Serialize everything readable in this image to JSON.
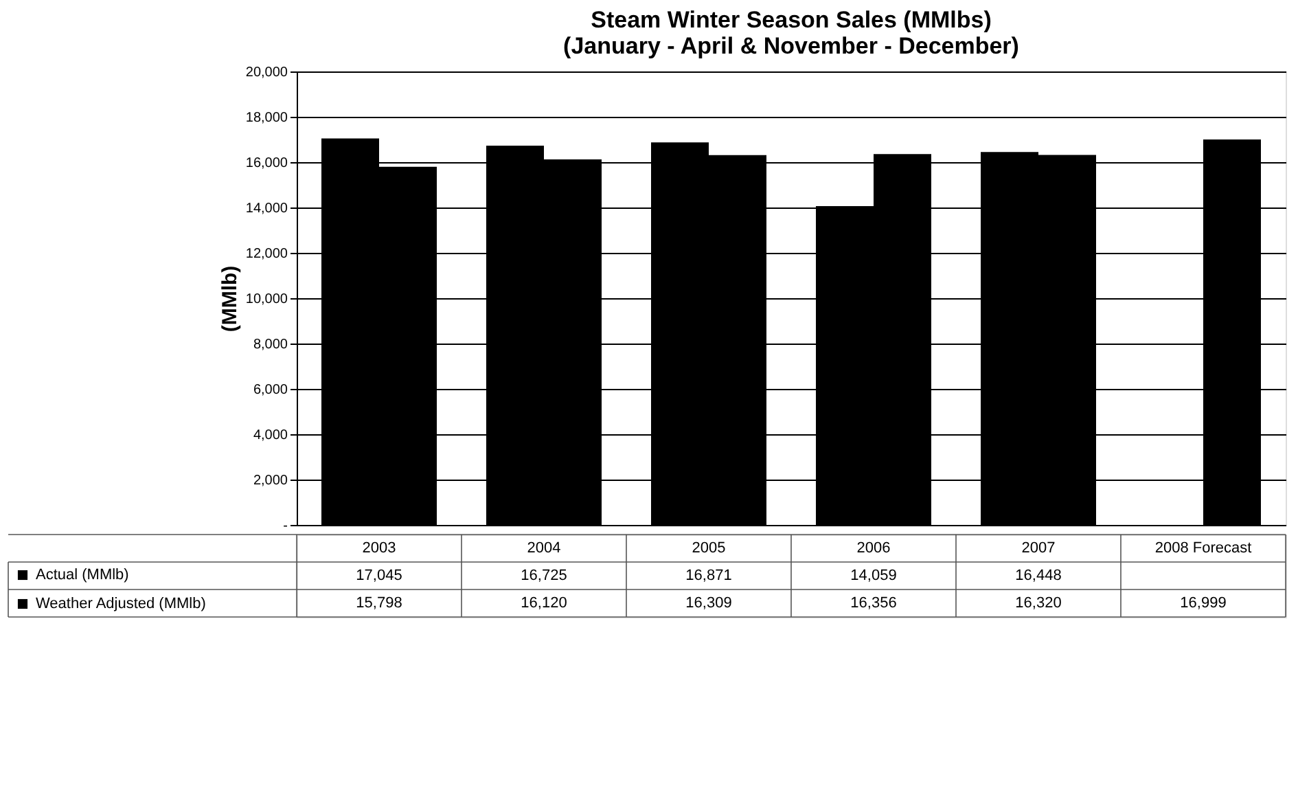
{
  "chart_data": {
    "type": "bar",
    "title": [
      "Steam Winter Season Sales (MMlbs)",
      "(January - April & November - December)"
    ],
    "ylabel": "(MMlb)",
    "categories": [
      "2003",
      "2004",
      "2005",
      "2006",
      "2007",
      "2008 Forecast"
    ],
    "series": [
      {
        "name": "Actual (MMlb)",
        "color": "#000000",
        "values": [
          17045,
          16725,
          16871,
          14059,
          16448,
          null
        ],
        "value_labels": [
          "17,045",
          "16,725",
          "16,871",
          "14,059",
          "16,448",
          null
        ]
      },
      {
        "name": "Weather Adjusted (MMlb)",
        "color": "#000000",
        "values": [
          15798,
          16120,
          16309,
          16356,
          16320,
          16999
        ],
        "value_labels": [
          "15,798",
          "16,120",
          "16,309",
          "16,356",
          "16,320",
          "16,999"
        ]
      }
    ],
    "ylim": [
      0,
      20000
    ],
    "yticks": [
      {
        "value": 0,
        "label": "-"
      },
      {
        "value": 2000,
        "label": "2,000"
      },
      {
        "value": 4000,
        "label": "4,000"
      },
      {
        "value": 6000,
        "label": "6,000"
      },
      {
        "value": 8000,
        "label": "8,000"
      },
      {
        "value": 10000,
        "label": "10,000"
      },
      {
        "value": 12000,
        "label": "12,000"
      },
      {
        "value": 14000,
        "label": "14,000"
      },
      {
        "value": 16000,
        "label": "16,000"
      },
      {
        "value": 18000,
        "label": "18,000"
      },
      {
        "value": 20000,
        "label": "20,000"
      }
    ],
    "grid": "y",
    "legend": "bottom left"
  }
}
